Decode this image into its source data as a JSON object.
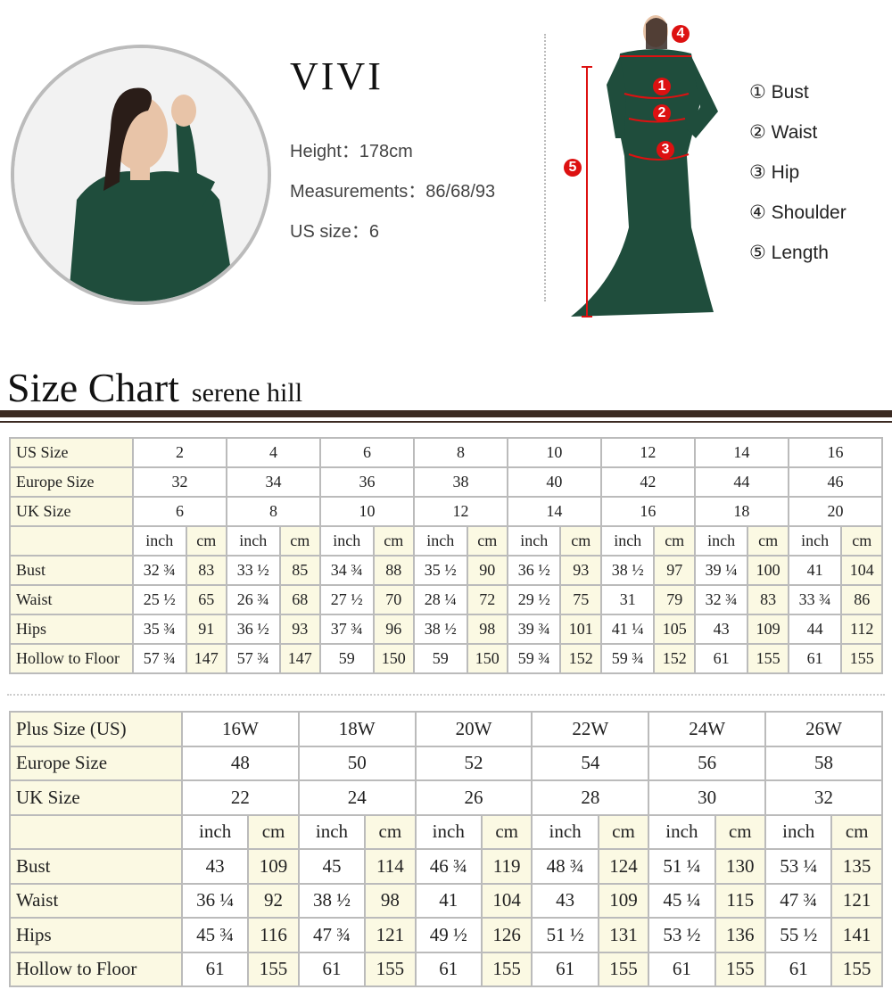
{
  "model": {
    "name": "VIVI",
    "height": "Height：178cm",
    "measurements": "Measurements：86/68/93",
    "us_size": "US size：6"
  },
  "diagram": {
    "markers": [
      "1",
      "2",
      "3",
      "4",
      "5"
    ],
    "legend": [
      "① Bust",
      "② Waist",
      "③ Hip",
      "④ Shoulder",
      "⑤ Length"
    ],
    "dress_color": "#1f4d3c",
    "marker_color": "#dd1111"
  },
  "size_chart": {
    "title": "Size Chart",
    "brand": "serene hill"
  },
  "table1": {
    "rows": [
      {
        "label": "US Size",
        "values": [
          "2",
          "4",
          "6",
          "8",
          "10",
          "12",
          "14",
          "16"
        ]
      },
      {
        "label": "Europe Size",
        "values": [
          "32",
          "34",
          "36",
          "38",
          "40",
          "42",
          "44",
          "46"
        ]
      },
      {
        "label": "UK Size",
        "values": [
          "6",
          "8",
          "10",
          "12",
          "14",
          "16",
          "18",
          "20"
        ]
      }
    ],
    "unit_inch": "inch",
    "unit_cm": "cm",
    "measures": [
      {
        "label": "Bust",
        "values": [
          "32 ¾",
          "83",
          "33 ½",
          "85",
          "34 ¾",
          "88",
          "35 ½",
          "90",
          "36 ½",
          "93",
          "38 ½",
          "97",
          "39 ¼",
          "100",
          "41",
          "104"
        ]
      },
      {
        "label": "Waist",
        "values": [
          "25 ½",
          "65",
          "26 ¾",
          "68",
          "27 ½",
          "70",
          "28 ¼",
          "72",
          "29 ½",
          "75",
          "31",
          "79",
          "32 ¾",
          "83",
          "33 ¾",
          "86"
        ]
      },
      {
        "label": "Hips",
        "values": [
          "35 ¾",
          "91",
          "36 ½",
          "93",
          "37 ¾",
          "96",
          "38 ½",
          "98",
          "39 ¾",
          "101",
          "41 ¼",
          "105",
          "43",
          "109",
          "44",
          "112"
        ]
      },
      {
        "label": "Hollow to Floor",
        "values": [
          "57 ¾",
          "147",
          "57 ¾",
          "147",
          "59",
          "150",
          "59",
          "150",
          "59 ¾",
          "152",
          "59 ¾",
          "152",
          "61",
          "155",
          "61",
          "155"
        ]
      }
    ]
  },
  "table2": {
    "rows": [
      {
        "label": "Plus Size (US)",
        "values": [
          "16W",
          "18W",
          "20W",
          "22W",
          "24W",
          "26W"
        ]
      },
      {
        "label": "Europe Size",
        "values": [
          "48",
          "50",
          "52",
          "54",
          "56",
          "58"
        ]
      },
      {
        "label": "UK Size",
        "values": [
          "22",
          "24",
          "26",
          "28",
          "30",
          "32"
        ]
      }
    ],
    "unit_inch": "inch",
    "unit_cm": "cm",
    "measures": [
      {
        "label": "Bust",
        "values": [
          "43",
          "109",
          "45",
          "114",
          "46 ¾",
          "119",
          "48 ¾",
          "124",
          "51 ¼",
          "130",
          "53 ¼",
          "135"
        ]
      },
      {
        "label": "Waist",
        "values": [
          "36 ¼",
          "92",
          "38 ½",
          "98",
          "41",
          "104",
          "43",
          "109",
          "45 ¼",
          "115",
          "47 ¾",
          "121"
        ]
      },
      {
        "label": "Hips",
        "values": [
          "45 ¾",
          "116",
          "47 ¾",
          "121",
          "49 ½",
          "126",
          "51 ½",
          "131",
          "53 ½",
          "136",
          "55 ½",
          "141"
        ]
      },
      {
        "label": "Hollow to Floor",
        "values": [
          "61",
          "155",
          "61",
          "155",
          "61",
          "155",
          "61",
          "155",
          "61",
          "155",
          "61",
          "155"
        ]
      }
    ]
  }
}
